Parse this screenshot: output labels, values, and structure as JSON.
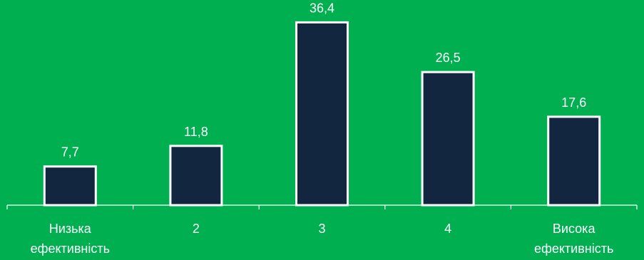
{
  "chart_data": {
    "type": "bar",
    "categories": [
      [
        "Низька",
        "ефективність"
      ],
      [
        "2"
      ],
      [
        "3"
      ],
      [
        "4"
      ],
      [
        "Висока",
        "ефективність"
      ]
    ],
    "values": [
      7.7,
      11.8,
      36.4,
      26.5,
      17.6
    ],
    "value_labels": [
      "7,7",
      "11,8",
      "36,4",
      "26,5",
      "17,6"
    ],
    "ylim": [
      0,
      40
    ],
    "grid": false,
    "legend": "none",
    "colors": {
      "background": "#00b050",
      "bar_fill": "#132640",
      "bar_outline": "#ffffff",
      "text": "#ffffff"
    }
  }
}
